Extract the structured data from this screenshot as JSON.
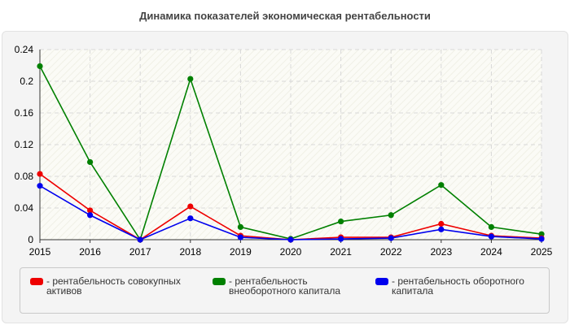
{
  "chart_data": {
    "type": "line",
    "title": "Динамика показателей экономическая рентабельности",
    "x": [
      "2015",
      "2016",
      "2017",
      "2018",
      "2019",
      "2020",
      "2021",
      "2022",
      "2023",
      "2024",
      "2025"
    ],
    "ylim": [
      0,
      0.24
    ],
    "yticks": [
      "0",
      "0.04",
      "0.08",
      "0.12",
      "0.16",
      "0.2",
      "0.24"
    ],
    "grid": true,
    "legend_position": "bottom",
    "series": [
      {
        "name": "- рентабельность совокупных активов",
        "color": "#ee0000",
        "values": [
          0.083,
          0.037,
          0.0,
          0.042,
          0.005,
          0.0,
          0.003,
          0.003,
          0.02,
          0.005,
          0.002
        ]
      },
      {
        "name": "- рентабельность внеоборотного капитала",
        "color": "#008000",
        "values": [
          0.219,
          0.098,
          0.0,
          0.203,
          0.016,
          0.001,
          0.023,
          0.031,
          0.069,
          0.016,
          0.007
        ]
      },
      {
        "name": "- рентабельность оборотного капитала",
        "color": "#0000ee",
        "values": [
          0.068,
          0.031,
          0.0,
          0.027,
          0.003,
          0.0,
          0.001,
          0.002,
          0.013,
          0.004,
          0.001
        ]
      }
    ]
  }
}
